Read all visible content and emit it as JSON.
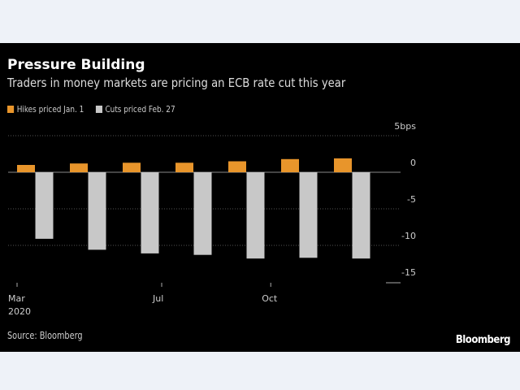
{
  "chart_data": {
    "type": "bar",
    "title": "Pressure Building",
    "subtitle": "Traders in money markets are pricing an ECB rate cut this year",
    "x": [
      "2020-03-12",
      "2020-04-30",
      "2020-06-04",
      "2020-07-16",
      "2020-09-10",
      "2020-10-29",
      "2020-12-10"
    ],
    "x_ticks": [
      {
        "date": "2020-03-01",
        "label": "Mar",
        "sublabel": "2020"
      },
      {
        "date": "2020-07-01",
        "label": "Jul"
      },
      {
        "date": "2020-10-01",
        "label": "Oct"
      }
    ],
    "series": [
      {
        "name": "Hikes priced Jan. 1",
        "color": "#e8952b",
        "values": [
          1.0,
          1.2,
          1.3,
          1.3,
          1.5,
          1.8,
          1.9
        ]
      },
      {
        "name": "Cuts priced Feb. 27",
        "color": "#c8c8c8",
        "values": [
          -9.1,
          -10.6,
          -11.1,
          -11.3,
          -11.8,
          -11.7,
          -11.8
        ]
      }
    ],
    "ylim": [
      -15,
      5
    ],
    "y_ticks": [
      {
        "value": 5,
        "label": "5bps"
      },
      {
        "value": 0,
        "label": "0"
      },
      {
        "value": -5,
        "label": "-5"
      },
      {
        "value": -10,
        "label": "-10"
      },
      {
        "value": -15,
        "label": "-15"
      }
    ],
    "y_axis_side": "right",
    "grid": true,
    "legend_position": "top-left",
    "source": "Source: Bloomberg",
    "logo": "Bloomberg"
  }
}
